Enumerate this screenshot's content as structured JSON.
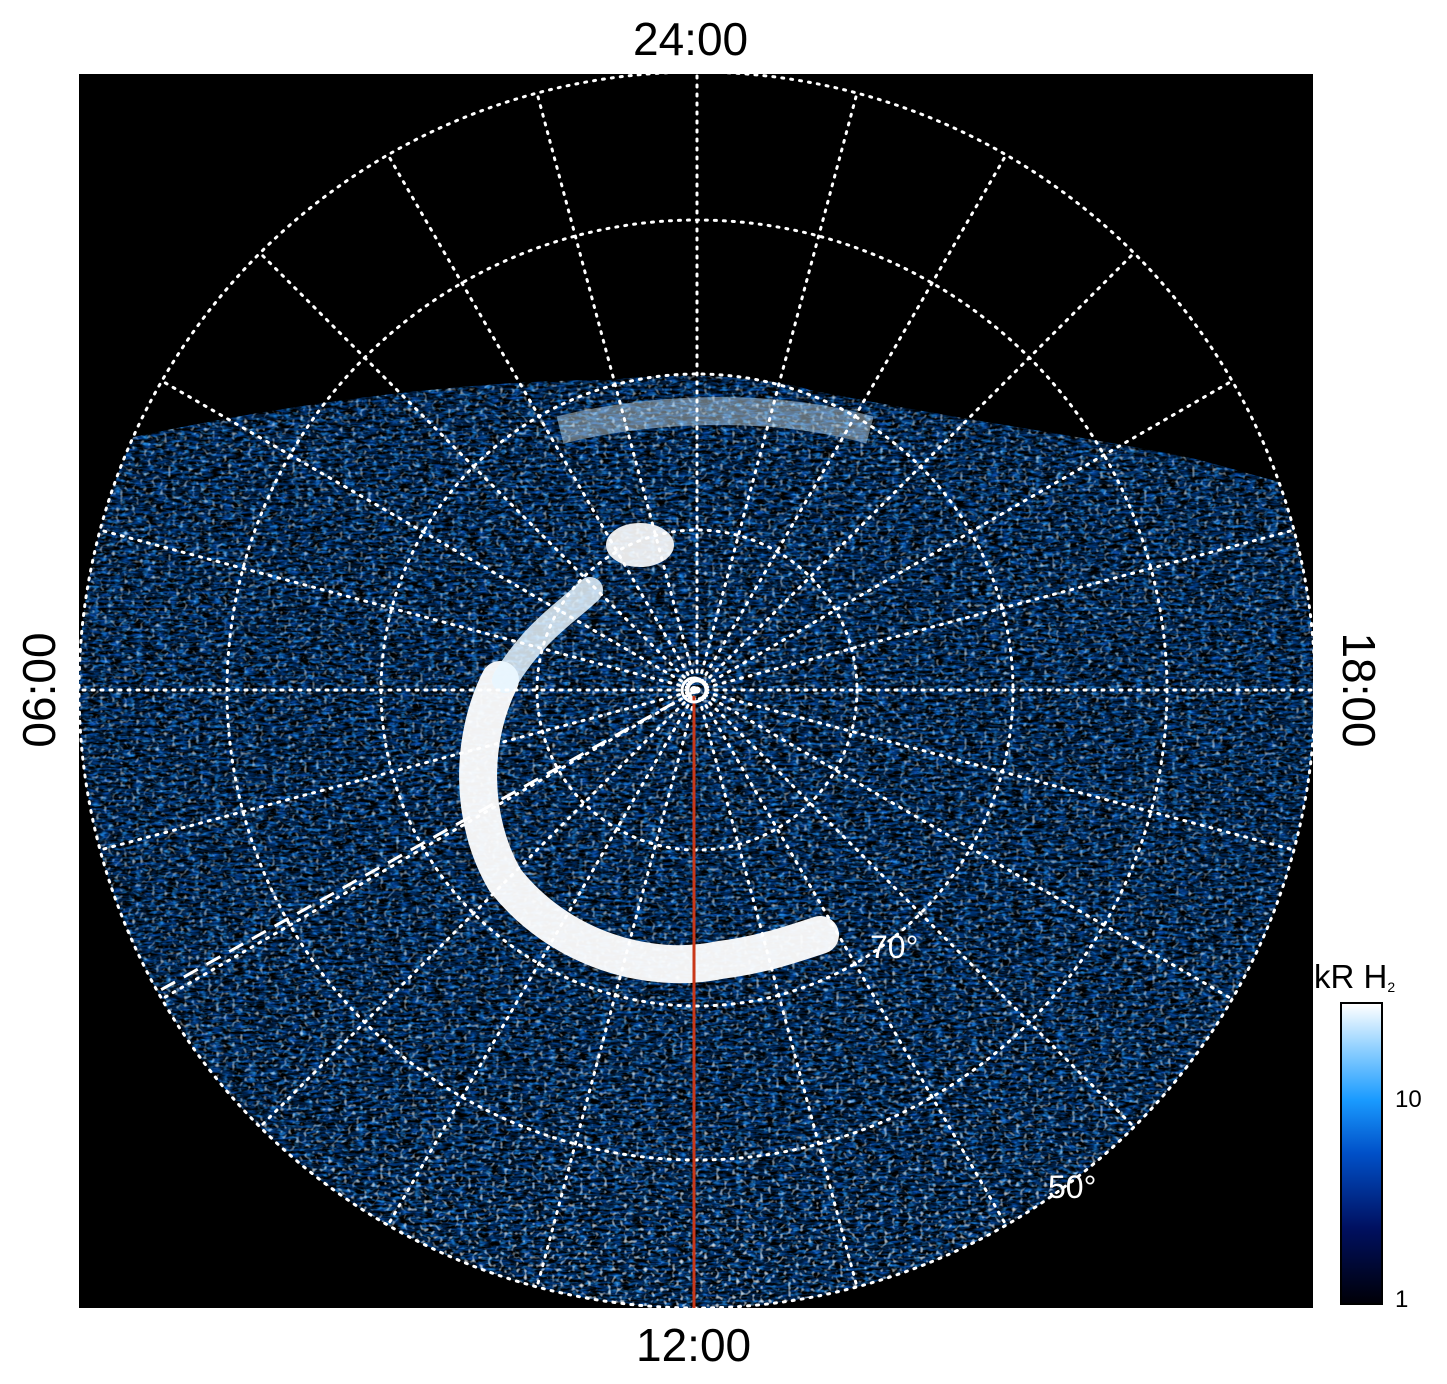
{
  "figure": {
    "local_time_labels": {
      "top": "24:00",
      "bottom": "12:00",
      "left": "06:00",
      "right": "18:00"
    },
    "latitude_labels": [
      "70°",
      "50°"
    ],
    "colorbar": {
      "unit": "kR H",
      "unit_subscript": "2",
      "ticks": [
        "10",
        "1"
      ],
      "scale": "log",
      "colors": [
        "#000008",
        "#001060",
        "#0050c8",
        "#1a9bff",
        "#8fd0ff",
        "#ffffff"
      ]
    },
    "colors": {
      "background": "#000000",
      "grid": "#ffffff",
      "meridian_line": "#c8381a",
      "aurora": "#ffffff"
    }
  }
}
